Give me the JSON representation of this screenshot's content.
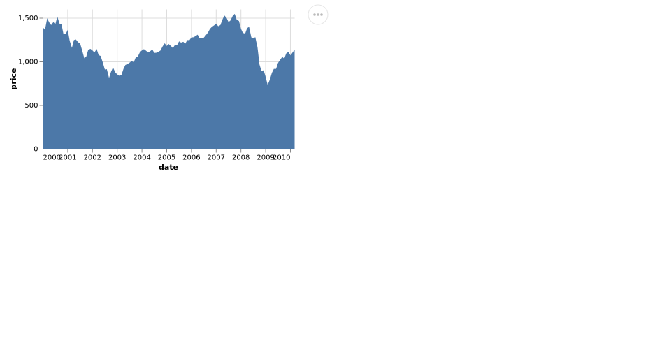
{
  "chart_data": {
    "type": "area",
    "x_label": "date",
    "y_label": "price",
    "color": "#4c78a8",
    "grid": true,
    "xlim": [
      2000,
      2010.17
    ],
    "xticks": [
      2000,
      2001,
      2002,
      2003,
      2004,
      2005,
      2006,
      2007,
      2008,
      2009,
      2010
    ],
    "ylim": [
      0,
      1600
    ],
    "yticks": [
      0,
      {
        "value": 500,
        "label": "500"
      },
      {
        "value": 1000,
        "label": "1,000"
      },
      {
        "value": 1500,
        "label": "1,500"
      }
    ],
    "x": [
      2000,
      2000.08,
      2000.17,
      2000.25,
      2000.33,
      2000.42,
      2000.5,
      2000.58,
      2000.67,
      2000.75,
      2000.83,
      2000.92,
      2001,
      2001.08,
      2001.17,
      2001.25,
      2001.33,
      2001.42,
      2001.5,
      2001.58,
      2001.67,
      2001.75,
      2001.83,
      2001.92,
      2002,
      2002.08,
      2002.17,
      2002.25,
      2002.33,
      2002.42,
      2002.5,
      2002.58,
      2002.67,
      2002.75,
      2002.83,
      2002.92,
      2003,
      2003.08,
      2003.17,
      2003.25,
      2003.33,
      2003.42,
      2003.5,
      2003.58,
      2003.67,
      2003.75,
      2003.83,
      2003.92,
      2004,
      2004.08,
      2004.17,
      2004.25,
      2004.33,
      2004.42,
      2004.5,
      2004.58,
      2004.67,
      2004.75,
      2004.83,
      2004.92,
      2005,
      2005.08,
      2005.17,
      2005.25,
      2005.33,
      2005.42,
      2005.5,
      2005.58,
      2005.67,
      2005.75,
      2005.83,
      2005.92,
      2006,
      2006.08,
      2006.17,
      2006.25,
      2006.33,
      2006.42,
      2006.5,
      2006.58,
      2006.67,
      2006.75,
      2006.83,
      2006.92,
      2007,
      2007.08,
      2007.17,
      2007.25,
      2007.33,
      2007.42,
      2007.5,
      2007.58,
      2007.67,
      2007.75,
      2007.83,
      2007.92,
      2008,
      2008.08,
      2008.17,
      2008.25,
      2008.33,
      2008.42,
      2008.5,
      2008.58,
      2008.67,
      2008.75,
      2008.83,
      2008.92,
      2009,
      2009.08,
      2009.17,
      2009.25,
      2009.33,
      2009.42,
      2009.5,
      2009.58,
      2009.67,
      2009.75,
      2009.83,
      2009.92,
      2010,
      2010.08,
      2010.17
    ],
    "values": [
      1394,
      1366,
      1499,
      1452,
      1421,
      1455,
      1431,
      1518,
      1437,
      1429,
      1315,
      1320,
      1366,
      1240,
      1160,
      1249,
      1256,
      1224,
      1211,
      1134,
      1041,
      1060,
      1139,
      1148,
      1130,
      1107,
      1147,
      1077,
      1067,
      990,
      912,
      916,
      815,
      886,
      936,
      880,
      856,
      841,
      848,
      917,
      964,
      975,
      990,
      1008,
      996,
      1051,
      1058,
      1112,
      1131,
      1145,
      1126,
      1107,
      1121,
      1141,
      1102,
      1104,
      1115,
      1130,
      1174,
      1212,
      1181,
      1204,
      1181,
      1157,
      1192,
      1191,
      1234,
      1220,
      1229,
      1207,
      1249,
      1248,
      1280,
      1281,
      1295,
      1311,
      1270,
      1270,
      1277,
      1304,
      1336,
      1378,
      1401,
      1418,
      1438,
      1407,
      1421,
      1482,
      1531,
      1503,
      1455,
      1474,
      1527,
      1549,
      1481,
      1468,
      1379,
      1331,
      1323,
      1386,
      1400,
      1280,
      1267,
      1283,
      1166,
      969,
      896,
      903,
      826,
      735,
      798,
      873,
      919,
      919,
      987,
      1021,
      1057,
      1036,
      1096,
      1115,
      1074,
      1104,
      1140
    ]
  }
}
